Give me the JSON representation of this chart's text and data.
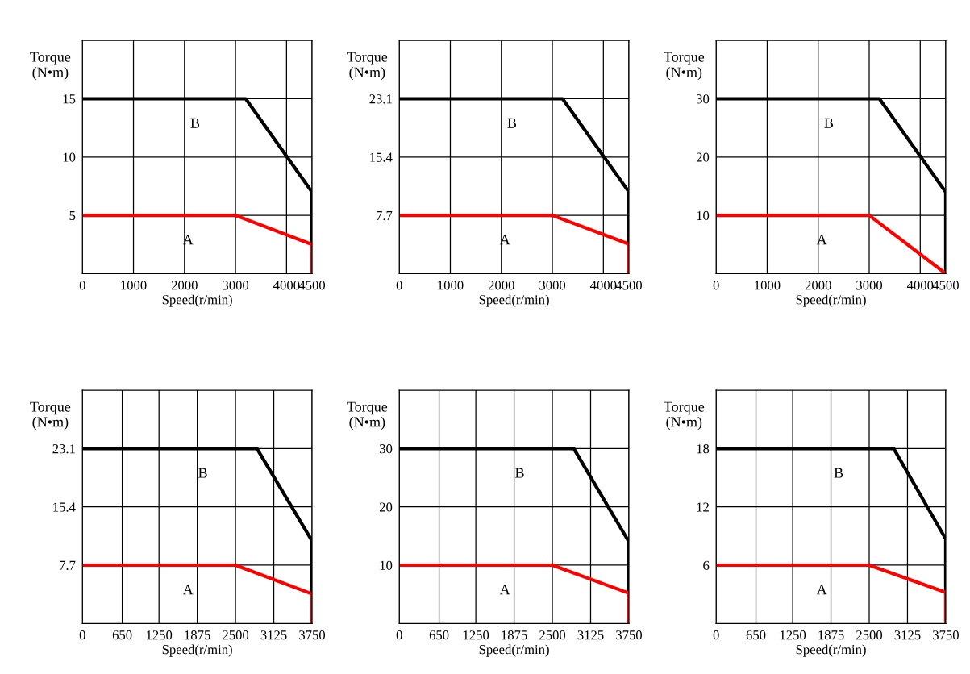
{
  "chart_data": [
    {
      "type": "line",
      "xlabel": "Speed(r/min)",
      "ylabel": "Torque\n(N•m)",
      "xlim": [
        0,
        4500
      ],
      "ylim": [
        0,
        20
      ],
      "xticks": [
        0,
        1000,
        2000,
        3000,
        4000,
        4500
      ],
      "yticks": [
        5,
        10,
        15
      ],
      "grid": true,
      "series": [
        {
          "name": "B",
          "color": "#000000",
          "x": [
            0,
            3200,
            4500,
            4500
          ],
          "values": [
            15,
            15,
            7,
            2.5
          ]
        },
        {
          "name": "A",
          "color": "#ff0000",
          "x": [
            0,
            3000,
            4500,
            4500
          ],
          "values": [
            5,
            5,
            2.5,
            0
          ]
        }
      ]
    },
    {
      "type": "line",
      "xlabel": "Speed(r/min)",
      "ylabel": "Torque\n(N•m)",
      "xlim": [
        0,
        4500
      ],
      "ylim": [
        0,
        30.8
      ],
      "xticks": [
        0,
        1000,
        2000,
        3000,
        4000,
        4500
      ],
      "yticks": [
        7.7,
        15.4,
        23.1
      ],
      "grid": true,
      "series": [
        {
          "name": "B",
          "color": "#000000",
          "x": [
            0,
            3200,
            4500,
            4500
          ],
          "values": [
            23.1,
            23.1,
            10.8,
            3.9
          ]
        },
        {
          "name": "A",
          "color": "#ff0000",
          "x": [
            0,
            3000,
            4500,
            4500
          ],
          "values": [
            7.7,
            7.7,
            3.9,
            0
          ]
        }
      ]
    },
    {
      "type": "line",
      "xlabel": "Speed(r/min)",
      "ylabel": "Torque\n(N•m)",
      "xlim": [
        0,
        4500
      ],
      "ylim": [
        0,
        40
      ],
      "xticks": [
        0,
        1000,
        2000,
        3000,
        4000,
        4500
      ],
      "yticks": [
        10,
        20,
        30
      ],
      "grid": true,
      "series": [
        {
          "name": "B",
          "color": "#000000",
          "x": [
            0,
            3200,
            4500,
            4500
          ],
          "values": [
            30,
            30,
            14,
            0
          ]
        },
        {
          "name": "A",
          "color": "#ff0000",
          "x": [
            0,
            3000,
            4500
          ],
          "values": [
            10,
            10,
            0
          ]
        }
      ]
    },
    {
      "type": "line",
      "xlabel": "Speed(r/min)",
      "ylabel": "Torque\n(N•m)",
      "xlim": [
        0,
        3750
      ],
      "ylim": [
        0,
        30.8
      ],
      "xticks": [
        0,
        650,
        1250,
        1875,
        2500,
        3125,
        3750
      ],
      "yticks": [
        7.7,
        15.4,
        23.1
      ],
      "grid": true,
      "series": [
        {
          "name": "B",
          "color": "#000000",
          "x": [
            0,
            2850,
            3750,
            3750
          ],
          "values": [
            23.1,
            23.1,
            10.9,
            3.9
          ]
        },
        {
          "name": "A",
          "color": "#ff0000",
          "x": [
            0,
            2500,
            3750,
            3750
          ],
          "values": [
            7.7,
            7.7,
            3.9,
            0
          ]
        }
      ]
    },
    {
      "type": "line",
      "xlabel": "Speed(r/min)",
      "ylabel": "Torque\n(N•m)",
      "xlim": [
        0,
        3750
      ],
      "ylim": [
        0,
        40
      ],
      "xticks": [
        0,
        650,
        1250,
        1875,
        2500,
        3125,
        3750
      ],
      "yticks": [
        10,
        20,
        30
      ],
      "grid": true,
      "series": [
        {
          "name": "B",
          "color": "#000000",
          "x": [
            0,
            2850,
            3750,
            3750
          ],
          "values": [
            30,
            30,
            14,
            5.2
          ]
        },
        {
          "name": "A",
          "color": "#ff0000",
          "x": [
            0,
            2500,
            3750,
            3750
          ],
          "values": [
            10,
            10,
            5.2,
            0
          ]
        }
      ]
    },
    {
      "type": "line",
      "xlabel": "Speed(r/min)",
      "ylabel": "Torque\n(N•m)",
      "xlim": [
        0,
        3750
      ],
      "ylim": [
        0,
        24
      ],
      "xticks": [
        0,
        650,
        1250,
        1875,
        2500,
        3125,
        3750
      ],
      "yticks": [
        6,
        12,
        18
      ],
      "grid": true,
      "series": [
        {
          "name": "B",
          "color": "#000000",
          "x": [
            0,
            2900,
            3750,
            3750
          ],
          "values": [
            18,
            18,
            8.7,
            3.2
          ]
        },
        {
          "name": "A",
          "color": "#ff0000",
          "x": [
            0,
            2500,
            3750,
            3750
          ],
          "values": [
            6,
            6,
            3.2,
            0
          ]
        }
      ]
    }
  ]
}
